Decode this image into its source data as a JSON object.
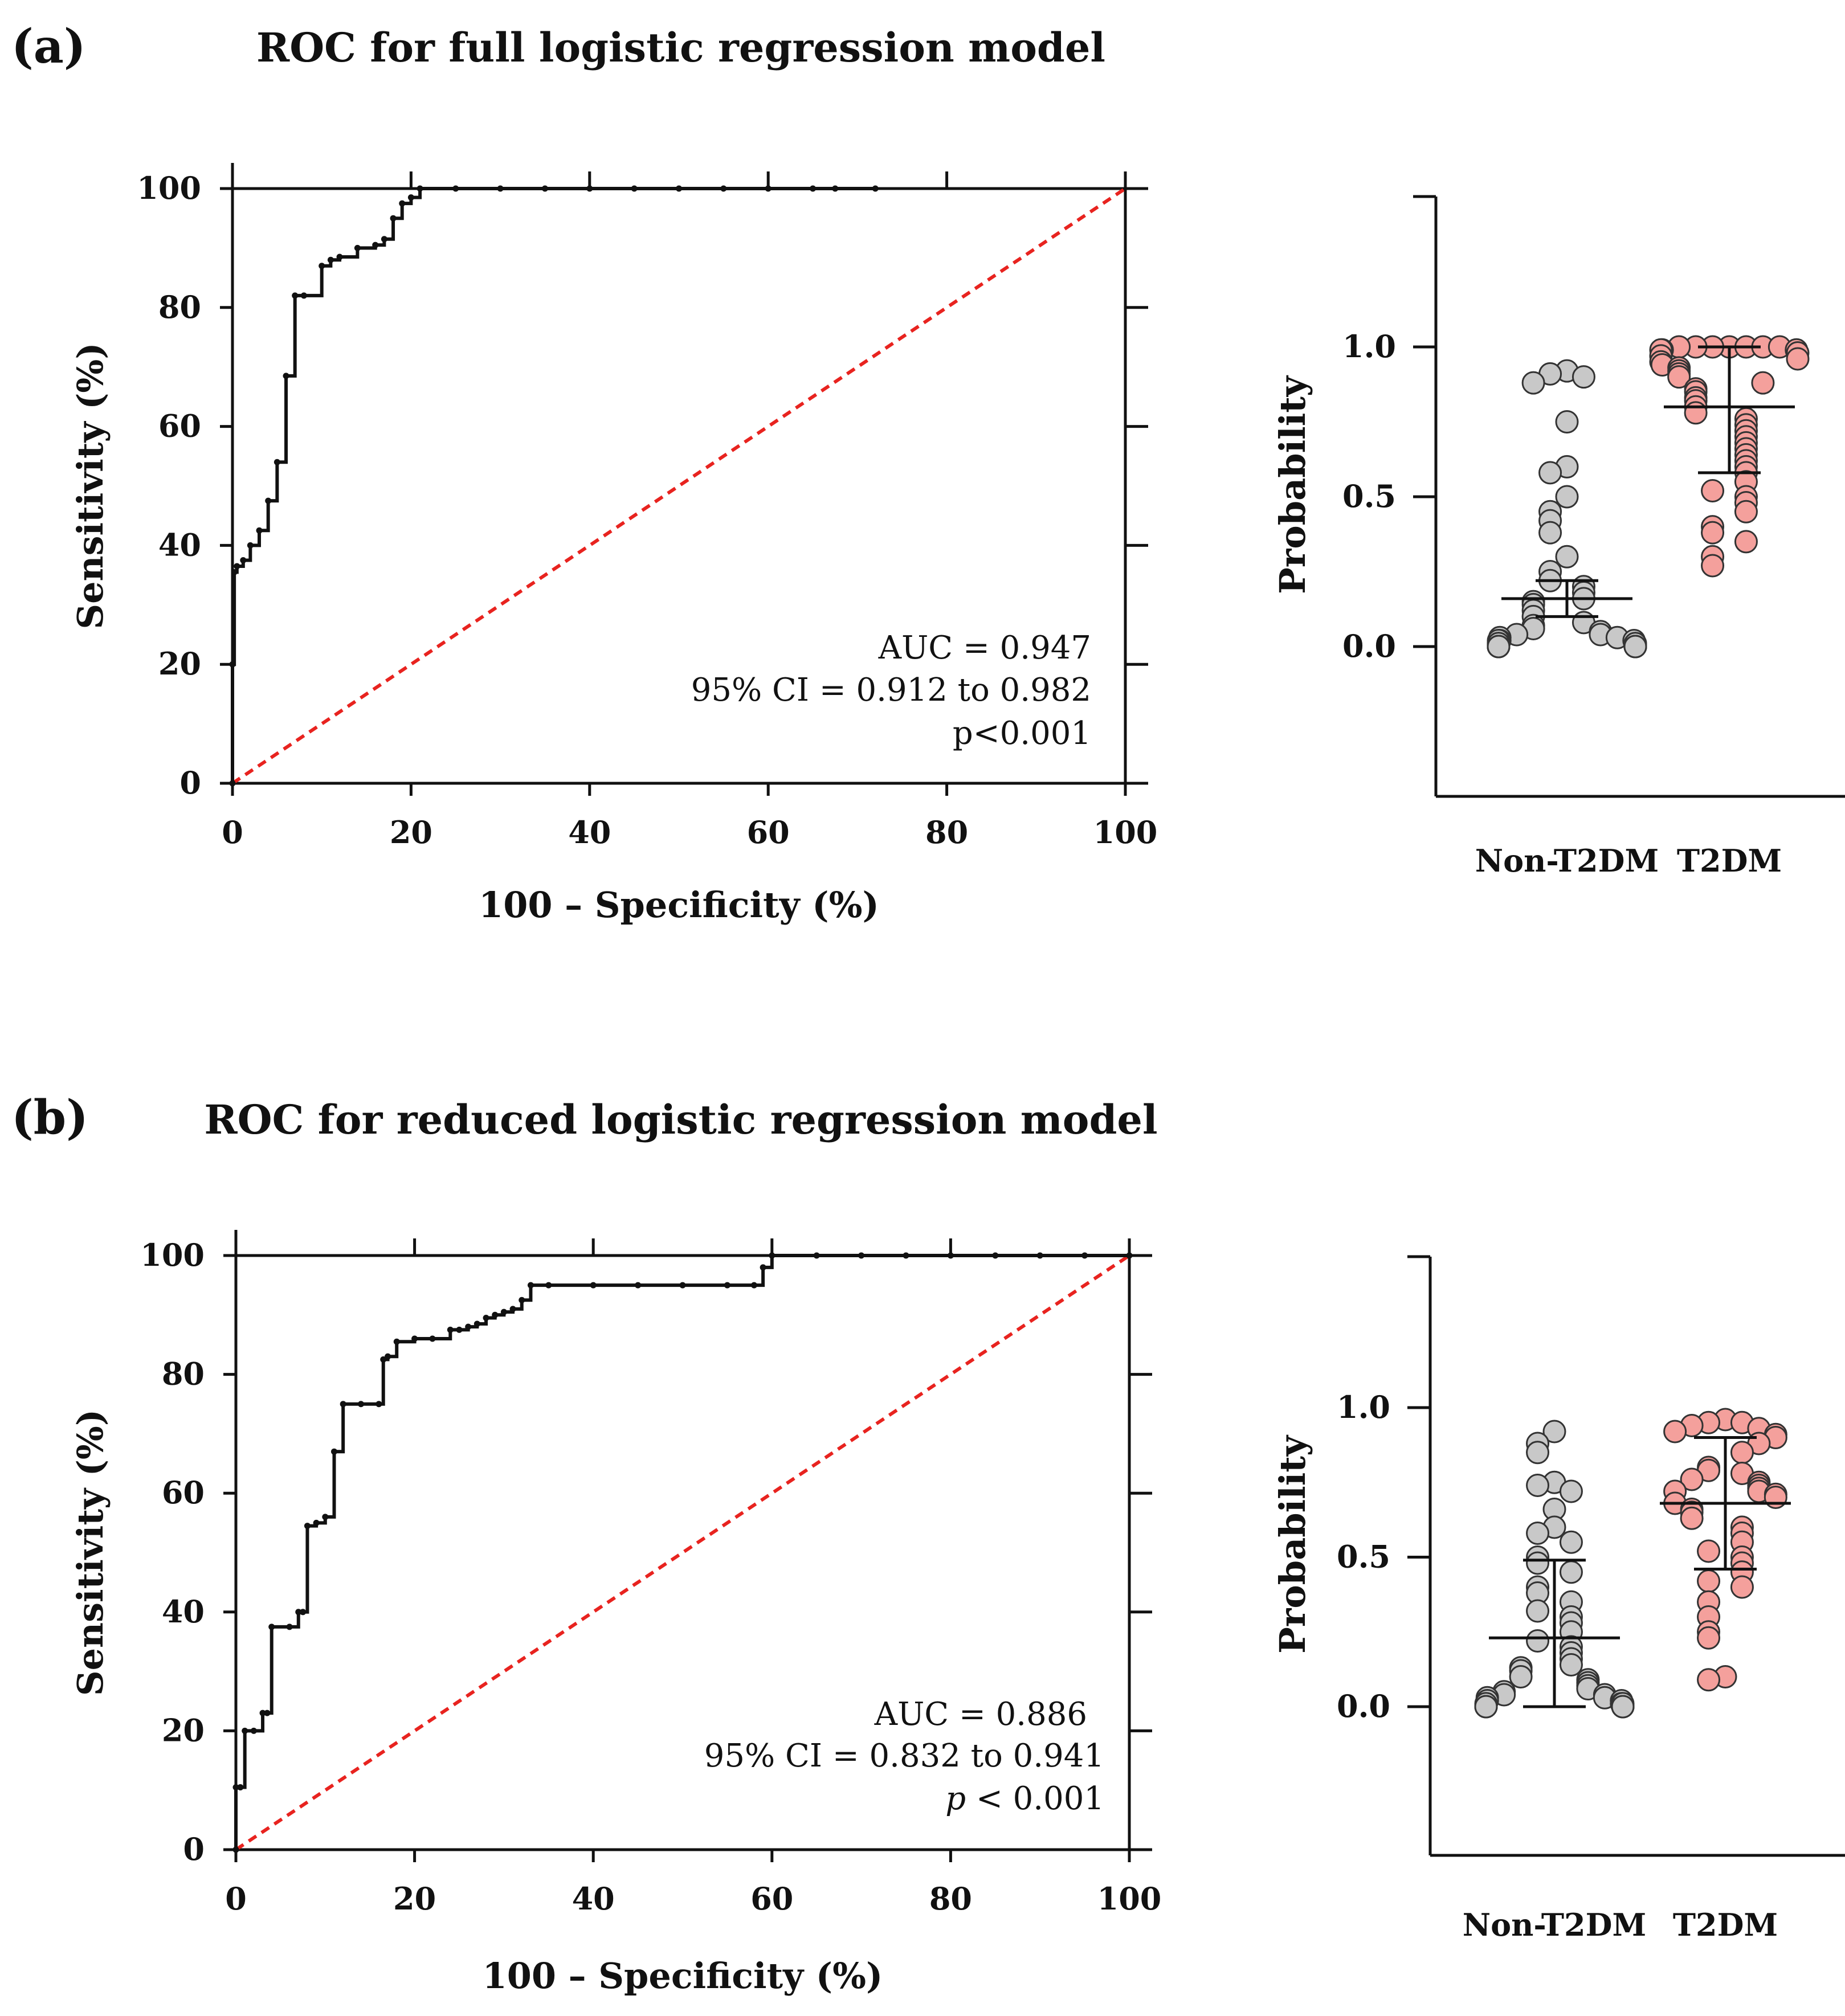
{
  "chart_data": [
    {
      "type": "line",
      "panel_label": "(a)",
      "title": "ROC for full logistic regression model",
      "xlabel": "100 – Specificity (%)",
      "ylabel": "Sensitivity (%)",
      "xlim": [
        0,
        100
      ],
      "ylim": [
        0,
        100
      ],
      "xticks": [
        0,
        20,
        40,
        60,
        80,
        100
      ],
      "yticks": [
        0,
        20,
        40,
        60,
        80,
        100
      ],
      "reference_line_color": "#e8231f",
      "roc_color": "#111111",
      "series": [
        {
          "x": [
            0,
            0,
            0.2,
            0.5,
            1.2,
            2,
            3,
            4,
            5,
            6,
            7,
            8,
            10,
            11,
            12,
            14,
            16,
            17,
            18,
            19,
            20,
            21,
            25,
            30,
            35,
            40,
            45,
            50,
            55,
            60,
            65,
            67.5,
            72
          ],
          "y": [
            0,
            20,
            35.5,
            36.5,
            37.5,
            40,
            42.5,
            47.5,
            54,
            68.5,
            82,
            82,
            87,
            88,
            88.5,
            90,
            90.5,
            91.5,
            95,
            97.5,
            98.5,
            100,
            100,
            100,
            100,
            100,
            100,
            100,
            100,
            100,
            100,
            100,
            100
          ]
        }
      ],
      "annotations": [
        "AUC = 0.947",
        "95% CI = 0.912 to 0.982",
        "p<0.001"
      ]
    },
    {
      "type": "scatter",
      "ylabel": "Probability",
      "categories": [
        "Non-T2DM",
        "T2DM"
      ],
      "yticks": [
        "0.0",
        "0.5",
        "1.0"
      ],
      "ylim": [
        -0.5,
        1.5
      ],
      "colors": {
        "Non-T2DM": "#c8c8c8",
        "T2DM": "#f4a09c"
      },
      "series": [
        {
          "name": "Non-T2DM",
          "mean": 0.16,
          "ci": [
            0.1,
            0.22
          ],
          "values": [
            0.92,
            0.91,
            0.9,
            0.88,
            0.75,
            0.6,
            0.58,
            0.5,
            0.45,
            0.42,
            0.38,
            0.3,
            0.25,
            0.22,
            0.2,
            0.18,
            0.16,
            0.15,
            0.14,
            0.12,
            0.1,
            0.08,
            0.07,
            0.06,
            0.05,
            0.04,
            0.04,
            0.03,
            0.03,
            0.02,
            0.02,
            0.02,
            0.01,
            0.01,
            0.01,
            0.01,
            0.01,
            0.0,
            0.0,
            0.0,
            0.0,
            0.0,
            0.0,
            0.0,
            0.0,
            0.0,
            0.0,
            0.0
          ]
        },
        {
          "name": "T2DM",
          "mean": 0.8,
          "ci": [
            0.58,
            1.0
          ],
          "values": [
            1.0,
            1.0,
            1.0,
            1.0,
            1.0,
            1.0,
            1.0,
            0.99,
            0.99,
            0.99,
            0.98,
            0.97,
            0.96,
            0.95,
            0.94,
            0.93,
            0.92,
            0.91,
            0.9,
            0.88,
            0.86,
            0.85,
            0.83,
            0.82,
            0.8,
            0.78,
            0.76,
            0.74,
            0.72,
            0.7,
            0.68,
            0.66,
            0.64,
            0.62,
            0.6,
            0.58,
            0.55,
            0.52,
            0.5,
            0.48,
            0.45,
            0.4,
            0.38,
            0.35,
            0.3,
            0.27
          ]
        }
      ]
    },
    {
      "type": "line",
      "panel_label": "(b)",
      "title": "ROC for reduced logistic regression model",
      "xlabel": "100 – Specificity (%)",
      "ylabel": "Sensitivity (%)",
      "xlim": [
        0,
        100
      ],
      "ylim": [
        0,
        100
      ],
      "xticks": [
        0,
        20,
        40,
        60,
        80,
        100
      ],
      "yticks": [
        0,
        20,
        40,
        60,
        80,
        100
      ],
      "reference_line_color": "#e8231f",
      "roc_color": "#111111",
      "series": [
        {
          "x": [
            0,
            0,
            0.5,
            1,
            2,
            3,
            3.5,
            4,
            6,
            7,
            7.5,
            8,
            9,
            10,
            11,
            12,
            14,
            16,
            16.5,
            17,
            18,
            20,
            22,
            24,
            25,
            26,
            27,
            28,
            29,
            30,
            31,
            32,
            33,
            35,
            40,
            45,
            50,
            55,
            58,
            59,
            60,
            65,
            70,
            75,
            80,
            85,
            90,
            95,
            100
          ],
          "y": [
            0,
            10.5,
            10.5,
            20,
            20,
            23,
            23,
            37.5,
            37.5,
            40,
            40,
            54.5,
            55,
            56,
            67,
            75,
            75,
            75,
            82.5,
            83,
            85.5,
            86,
            86,
            87.5,
            87.5,
            88,
            88.5,
            89.5,
            90,
            90.5,
            91,
            92.5,
            95,
            95,
            95,
            95,
            95,
            95,
            95,
            98,
            100,
            100,
            100,
            100,
            100,
            100,
            100,
            100,
            100
          ]
        }
      ],
      "annotations": [
        "AUC = 0.886",
        "95% CI = 0.832 to 0.941",
        "p",
        "< 0.001"
      ]
    },
    {
      "type": "scatter",
      "ylabel": "Probability",
      "categories": [
        "Non-T2DM",
        "T2DM"
      ],
      "yticks": [
        "0.0",
        "0.5",
        "1.0"
      ],
      "ylim": [
        -0.5,
        1.5
      ],
      "colors": {
        "Non-T2DM": "#c8c8c8",
        "T2DM": "#f4a09c"
      },
      "series": [
        {
          "name": "Non-T2DM",
          "mean": 0.23,
          "ci": [
            0.0,
            0.49
          ],
          "values": [
            0.92,
            0.88,
            0.85,
            0.75,
            0.74,
            0.72,
            0.66,
            0.6,
            0.58,
            0.55,
            0.5,
            0.48,
            0.45,
            0.4,
            0.38,
            0.35,
            0.32,
            0.3,
            0.28,
            0.25,
            0.22,
            0.2,
            0.18,
            0.16,
            0.14,
            0.13,
            0.12,
            0.1,
            0.09,
            0.08,
            0.07,
            0.06,
            0.05,
            0.04,
            0.04,
            0.03,
            0.03,
            0.02,
            0.02,
            0.01,
            0.01,
            0.01,
            0.0,
            0.0,
            0.0,
            0.0,
            0.0,
            0.0
          ]
        },
        {
          "name": "T2DM",
          "mean": 0.68,
          "ci": [
            0.46,
            0.9
          ],
          "values": [
            0.96,
            0.95,
            0.95,
            0.94,
            0.93,
            0.92,
            0.91,
            0.9,
            0.88,
            0.85,
            0.8,
            0.79,
            0.78,
            0.76,
            0.75,
            0.74,
            0.73,
            0.72,
            0.72,
            0.71,
            0.7,
            0.68,
            0.66,
            0.65,
            0.63,
            0.6,
            0.58,
            0.55,
            0.52,
            0.5,
            0.48,
            0.45,
            0.42,
            0.4,
            0.35,
            0.3,
            0.25,
            0.23,
            0.1,
            0.09
          ]
        }
      ]
    }
  ]
}
